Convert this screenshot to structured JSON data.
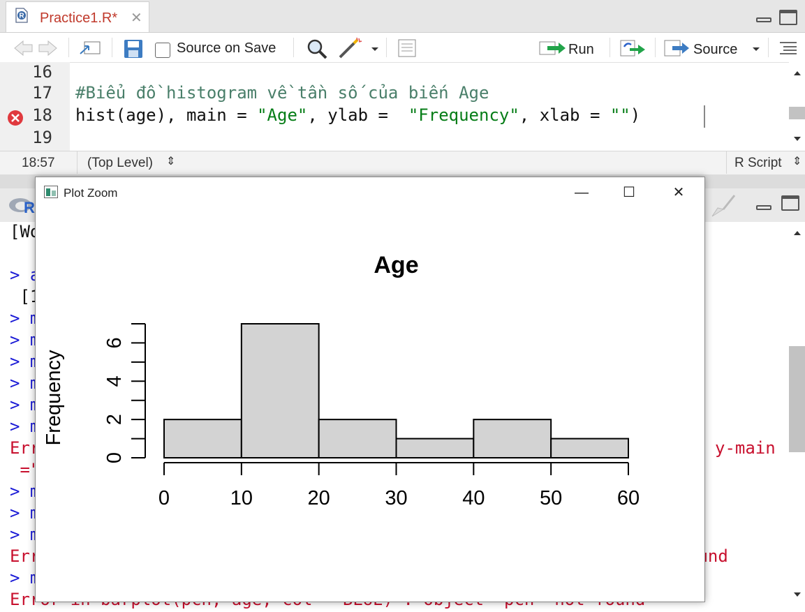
{
  "editor_tab": {
    "filename": "Practice1.R*",
    "close_symbol": "✕"
  },
  "toolbar": {
    "source_on_save_label": "Source on Save",
    "source_on_save_checked": false,
    "run_label": "Run",
    "source_label": "Source"
  },
  "editor": {
    "lines": [
      {
        "number": "16",
        "text": ""
      },
      {
        "number": "17",
        "text": "#Biểu đồ histogram về tần số của biến Age"
      },
      {
        "number": "18",
        "text": "hist(age), main = \"Age\", ylab =  \"Frequency\", xlab = \"\")",
        "error": true
      },
      {
        "number": "19",
        "text": ""
      }
    ],
    "line18_parts": {
      "p1": "hist(age)",
      "p2": ", main = ",
      "p3": "\"Age\"",
      "p4": ", ylab =  ",
      "p5": "\"Frequency\"",
      "p6": ", xlab = ",
      "p7": "\"\"",
      "p8": ")"
    }
  },
  "statusbar": {
    "position": "18:57",
    "scope": "(Top Level)",
    "file_type": "R Script"
  },
  "console": {
    "visible_fragments": [
      {
        "text": "[Wo",
        "kind": "output"
      },
      {
        "text": "> a",
        "kind": "prompt"
      },
      {
        "text": " [1",
        "kind": "output"
      },
      {
        "text": "> m",
        "kind": "prompt"
      },
      {
        "text": "> m",
        "kind": "prompt"
      },
      {
        "text": "> m",
        "kind": "prompt"
      },
      {
        "text": "> m",
        "kind": "prompt"
      },
      {
        "text": "> m",
        "kind": "prompt"
      },
      {
        "text": "> m",
        "kind": "prompt"
      },
      {
        "text": "Err",
        "kind": "error"
      },
      {
        "text": " =\"",
        "kind": "error"
      },
      {
        "text": "> m",
        "kind": "prompt"
      },
      {
        "text": "> m",
        "kind": "prompt"
      },
      {
        "text": "> m",
        "kind": "prompt"
      },
      {
        "text": "Err",
        "kind": "error"
      },
      {
        "text": "> m",
        "kind": "prompt"
      },
      {
        "text": "Error in barplot(pch, age, col = BLUE) : object 'pch' not found",
        "kind": "error"
      }
    ],
    "right_fragments": {
      "r1": "y-main",
      "r2": "ound"
    }
  },
  "plot_zoom": {
    "window_title": "Plot Zoom",
    "minimize": "—",
    "maximize": "☐",
    "close": "✕"
  },
  "chart_data": {
    "type": "bar",
    "title": "Age",
    "ylabel": "Frequency",
    "xlabel": "",
    "bins": [
      [
        0,
        10
      ],
      [
        10,
        20
      ],
      [
        20,
        30
      ],
      [
        30,
        40
      ],
      [
        40,
        50
      ],
      [
        50,
        60
      ]
    ],
    "values": [
      2,
      7,
      2,
      1,
      2,
      1
    ],
    "x_ticks": [
      0,
      10,
      20,
      30,
      40,
      50,
      60
    ],
    "y_ticks": [
      0,
      2,
      4,
      6
    ],
    "y_minor_ticks": [
      0,
      1,
      2,
      3,
      4,
      5,
      6,
      7
    ],
    "xlim": [
      0,
      60
    ],
    "ylim": [
      0,
      7
    ],
    "bar_fill": "#d3d3d3",
    "bar_stroke": "#000000",
    "grid": false
  },
  "colors": {
    "error_red": "#c8102e",
    "prompt_blue": "#1a1ad6",
    "comment_green": "#4a7f6a",
    "string_green": "#067d17",
    "tab_title_red": "#c0392b"
  }
}
